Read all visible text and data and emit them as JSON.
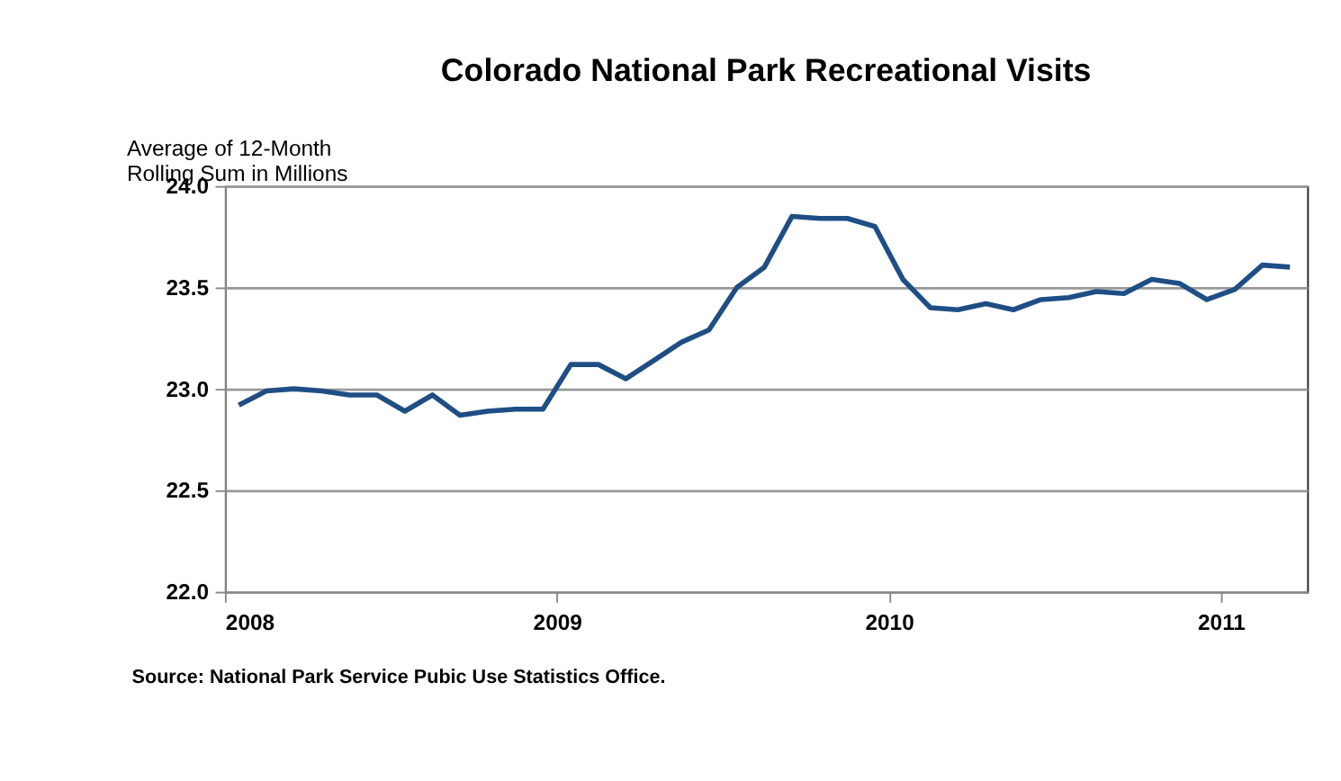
{
  "chart_data": {
    "type": "line",
    "title": "Colorado National Park Recreational Visits",
    "ylabel": "Average of 12-Month\nRolling Sum in Millions",
    "x": [
      2008.042,
      2008.125,
      2008.208,
      2008.292,
      2008.375,
      2008.458,
      2008.542,
      2008.625,
      2008.708,
      2008.792,
      2008.875,
      2008.958,
      2009.042,
      2009.125,
      2009.208,
      2009.292,
      2009.375,
      2009.458,
      2009.542,
      2009.625,
      2009.708,
      2009.792,
      2009.875,
      2009.958,
      2010.042,
      2010.125,
      2010.208,
      2010.292,
      2010.375,
      2010.458,
      2010.542,
      2010.625,
      2010.708,
      2010.792,
      2010.875,
      2010.958,
      2011.042,
      2011.125,
      2011.208
    ],
    "series": [
      {
        "color": "#1f4e85",
        "values": [
          22.92,
          22.99,
          23.0,
          22.99,
          22.97,
          22.97,
          22.89,
          22.97,
          22.87,
          22.89,
          22.9,
          22.9,
          23.12,
          23.12,
          23.05,
          23.14,
          23.23,
          23.29,
          23.5,
          23.6,
          23.85,
          23.84,
          23.84,
          23.8,
          23.54,
          23.4,
          23.39,
          23.42,
          23.39,
          23.44,
          23.45,
          23.48,
          23.47,
          23.54,
          23.52,
          23.44,
          23.49,
          23.61,
          23.6
        ]
      }
    ],
    "xlim": [
      2008,
      2011.26
    ],
    "xticks": [
      2008,
      2009,
      2010,
      2011
    ],
    "ylim": [
      22.0,
      24.0
    ],
    "yticks": [
      {
        "value": 22.0,
        "label": "22.0"
      },
      {
        "value": 22.5,
        "label": "22.5"
      },
      {
        "value": 23.0,
        "label": "23.0"
      },
      {
        "value": 23.5,
        "label": "23.5"
      },
      {
        "value": 24.0,
        "label": "24.0"
      }
    ],
    "grid": "y",
    "marker": "none",
    "line_style": "solid",
    "annotations": [
      "Source: National Park Service Pubic Use Statistics Office."
    ]
  }
}
